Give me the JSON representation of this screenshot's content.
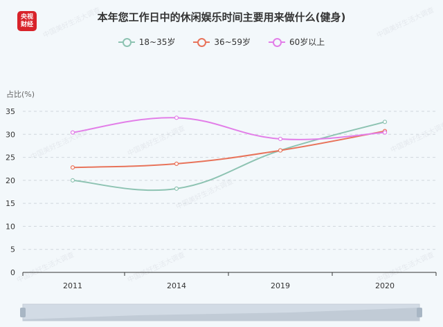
{
  "logo": {
    "line1": "央视",
    "line2": "财经"
  },
  "title": "本年您工作日中的休闲娱乐时间主要用来做什么(健身)",
  "watermark": "中国美好生活大调查",
  "colors": {
    "s1": "#8dc3b2",
    "s2": "#e8735a",
    "s3": "#e27ee8",
    "grid": "#cfd6dc",
    "axis": "#333333"
  },
  "chart_data": {
    "type": "line",
    "title": "本年您工作日中的休闲娱乐时间主要用来做什么(健身)",
    "ylabel": "占比(%)",
    "xlabel": "",
    "categories": [
      "2011",
      "2014",
      "2019",
      "2020"
    ],
    "ylim": [
      0,
      35
    ],
    "yticks": [
      0,
      5,
      10,
      15,
      20,
      25,
      30,
      35
    ],
    "grid": true,
    "legend": "top-center",
    "series": [
      {
        "name": "18~35岁",
        "values": [
          20.0,
          18.2,
          26.5,
          32.7
        ]
      },
      {
        "name": "36~59岁",
        "values": [
          22.8,
          23.6,
          26.5,
          30.7
        ]
      },
      {
        "name": "60岁以上",
        "values": [
          30.4,
          33.6,
          29.0,
          30.4
        ]
      }
    ]
  }
}
